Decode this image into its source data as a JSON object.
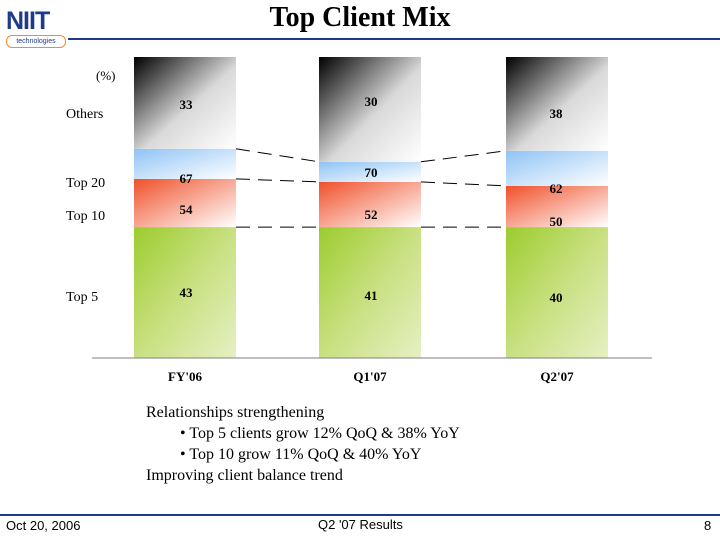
{
  "logo": {
    "name": "NIIT",
    "tagline": "technologies"
  },
  "title": "Top Client Mix",
  "chart_data": {
    "type": "bar",
    "stacked": true,
    "unit_label": "(%)",
    "categories": [
      "FY'06",
      "Q1'07",
      "Q2'07"
    ],
    "series": [
      {
        "name": "Top 5",
        "values": [
          43,
          41,
          40
        ]
      },
      {
        "name": "Top 10",
        "values": [
          54,
          52,
          50
        ]
      },
      {
        "name": "Top 20",
        "values": [
          67,
          70,
          62
        ]
      },
      {
        "name": "Others",
        "values": [
          33,
          30,
          38
        ]
      }
    ],
    "colors": {
      "top5": "#9ccc2e",
      "top10": "#f0502a",
      "top20": "#8fc3f5",
      "others": "#000000"
    },
    "legend_placement": "left",
    "connector_lines": "dashed lines joining segment boundaries between bars"
  },
  "commentary": {
    "heading": "Relationships strengthening",
    "bullets": [
      "Top 5 clients grow 12% QoQ & 38% YoY",
      "Top 10 grow 11% QoQ & 40% YoY"
    ],
    "closing": "Improving client balance trend"
  },
  "footer": {
    "date": "Oct 20, 2006",
    "center": "Q2 '07 Results",
    "page": "8"
  }
}
